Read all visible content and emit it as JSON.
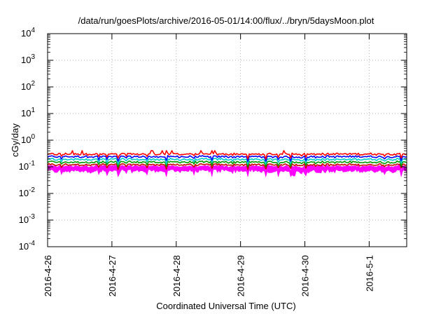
{
  "chart_data": {
    "type": "line",
    "title": "/data/run/goesPlots/archive/2016-05-01/14:00/flux/../bryn/5daysMoon.plot",
    "xlabel": "Coordinated Universal Time (UTC)",
    "ylabel": "cGy/day",
    "yscale": "log",
    "ylim": [
      0.0001,
      10000
    ],
    "xlim": [
      "2016-04-26 00:00",
      "2016-05-01 14:00"
    ],
    "grid": true,
    "legend": "none",
    "x_ticks": [
      {
        "value": "2016-04-26",
        "label": "2016-4-26"
      },
      {
        "value": "2016-04-27",
        "label": "2016-4-27"
      },
      {
        "value": "2016-04-28",
        "label": "2016-4-28"
      },
      {
        "value": "2016-04-29",
        "label": "2016-4-29"
      },
      {
        "value": "2016-04-30",
        "label": "2016-4-30"
      },
      {
        "value": "2016-05-01",
        "label": "2016-5-1"
      }
    ],
    "y_ticks": [
      {
        "base": "10",
        "exp": "-4"
      },
      {
        "base": "10",
        "exp": "-3"
      },
      {
        "base": "10",
        "exp": "-2"
      },
      {
        "base": "10",
        "exp": "-1"
      },
      {
        "base": "10",
        "exp": "0"
      },
      {
        "base": "10",
        "exp": "1"
      },
      {
        "base": "10",
        "exp": "2"
      },
      {
        "base": "10",
        "exp": "3"
      },
      {
        "base": "10",
        "exp": "4"
      }
    ],
    "series": [
      {
        "color": "#ff00ff",
        "style": "filled band",
        "approx_level": 0.1,
        "approx_min": 0.05,
        "approx_max": 0.13,
        "dips": [
          [
            "2016-04-29 11:00",
            0.06
          ],
          [
            "2016-04-29 19:00",
            0.05
          ],
          [
            "2016-04-29 20:00",
            0.045
          ],
          [
            "2016-04-30 00:00",
            0.055
          ],
          [
            "2016-04-30 05:00",
            0.06
          ],
          [
            "2016-04-30 15:00",
            0.065
          ]
        ]
      },
      {
        "color": "#cc0000",
        "approx_level": 0.12
      },
      {
        "color": "#009900",
        "approx_level": 0.15
      },
      {
        "color": "#00cccc",
        "approx_level": 0.19
      },
      {
        "color": "#0000ff",
        "approx_level": 0.24
      },
      {
        "color": "#ff0000",
        "approx_level": 0.3,
        "approx_max": 0.45
      }
    ]
  }
}
